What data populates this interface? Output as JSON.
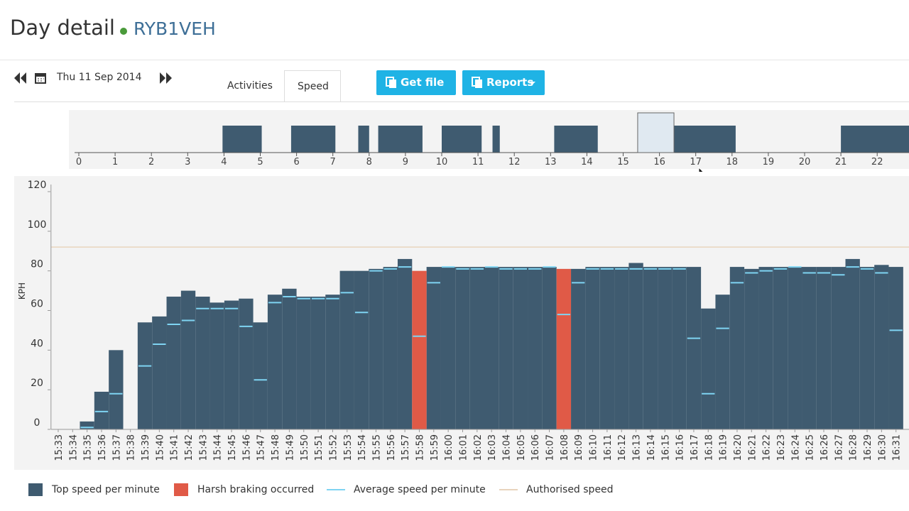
{
  "header": {
    "title": "Day detail",
    "vehicle": "RYB1VEH"
  },
  "toolbar": {
    "date": "Thu 11 Sep 2014",
    "tabs": [
      "Activities",
      "Speed"
    ],
    "active_tab": 1,
    "buttons": [
      "Get file",
      "Reports"
    ]
  },
  "overview": {
    "xticks": [
      0,
      1,
      2,
      3,
      4,
      5,
      6,
      7,
      8,
      9,
      10,
      11,
      12,
      13,
      14,
      15,
      16,
      17,
      18,
      19,
      20,
      21,
      22
    ],
    "segments": [
      [
        3.96,
        5.04
      ],
      [
        5.85,
        7.07
      ],
      [
        7.7,
        8.0
      ],
      [
        8.25,
        9.47
      ],
      [
        10.0,
        11.1
      ],
      [
        11.4,
        11.6
      ],
      [
        13.1,
        14.3
      ],
      [
        16.4,
        18.1
      ],
      [
        21.0,
        22.95
      ]
    ],
    "window": [
      15.4,
      16.4
    ],
    "color": "#3f5b70"
  },
  "chart_data": {
    "type": "bar",
    "y_label": "KPH",
    "ylim": [
      0,
      120
    ],
    "yticks": [
      0,
      20,
      40,
      60,
      80,
      100,
      120
    ],
    "categories": [
      "15:33",
      "15:34",
      "15:35",
      "15:36",
      "15:37",
      "15:38",
      "15:39",
      "15:40",
      "15:41",
      "15:42",
      "15:43",
      "15:44",
      "15:45",
      "15:46",
      "15:47",
      "15:48",
      "15:49",
      "15:50",
      "15:51",
      "15:52",
      "15:53",
      "15:54",
      "15:55",
      "15:56",
      "15:57",
      "15:58",
      "15:59",
      "16:00",
      "16:01",
      "16:02",
      "16:03",
      "16:04",
      "16:05",
      "16:06",
      "16:07",
      "16:08",
      "16:09",
      "16:10",
      "16:11",
      "16:12",
      "16:13",
      "16:14",
      "16:15",
      "16:16",
      "16:17",
      "16:18",
      "16:19",
      "16:20",
      "16:21",
      "16:22",
      "16:23",
      "16:24",
      "16:25",
      "16:26",
      "16:27",
      "16:28",
      "16:29",
      "16:30",
      "16:31"
    ],
    "series": [
      {
        "name": "Top speed per minute",
        "color": "#3f5b70",
        "kind": "bar",
        "values": [
          0,
          0,
          4,
          19,
          40,
          0,
          54,
          57,
          67,
          70,
          67,
          64,
          65,
          66,
          54,
          68,
          71,
          67,
          67,
          68,
          80,
          80,
          81,
          82,
          86,
          null,
          82,
          82,
          82,
          82,
          82,
          82,
          82,
          82,
          82,
          null,
          81,
          82,
          82,
          82,
          84,
          82,
          82,
          82,
          82,
          61,
          68,
          82,
          81,
          82,
          82,
          82,
          82,
          82,
          82,
          86,
          82,
          83,
          82
        ]
      },
      {
        "name": "Harsh braking occurred",
        "color": "#e05a47",
        "kind": "bar",
        "values": [
          null,
          null,
          null,
          null,
          null,
          null,
          null,
          null,
          null,
          null,
          null,
          null,
          null,
          null,
          null,
          null,
          null,
          null,
          null,
          null,
          null,
          null,
          null,
          null,
          null,
          80,
          null,
          null,
          null,
          null,
          null,
          null,
          null,
          null,
          null,
          81,
          null,
          null,
          null,
          null,
          null,
          null,
          null,
          null,
          null,
          null,
          null,
          null,
          null,
          null,
          null,
          null,
          null,
          null,
          null,
          null,
          null,
          null,
          null
        ]
      },
      {
        "name": "Average speed per minute",
        "color": "#7fd4f2",
        "kind": "dash",
        "values": [
          null,
          null,
          1,
          9,
          18,
          null,
          32,
          43,
          53,
          55,
          61,
          61,
          61,
          52,
          25,
          64,
          67,
          66,
          66,
          66,
          69,
          59,
          80,
          81,
          82,
          47,
          74,
          82,
          81,
          81,
          82,
          81,
          81,
          81,
          82,
          58,
          74,
          81,
          81,
          81,
          81,
          81,
          81,
          81,
          46,
          18,
          51,
          74,
          79,
          80,
          81,
          82,
          79,
          79,
          78,
          82,
          81,
          79,
          50
        ]
      }
    ],
    "reference": {
      "name": "Authorised speed",
      "color": "#e8d4bd",
      "value": 92
    }
  }
}
